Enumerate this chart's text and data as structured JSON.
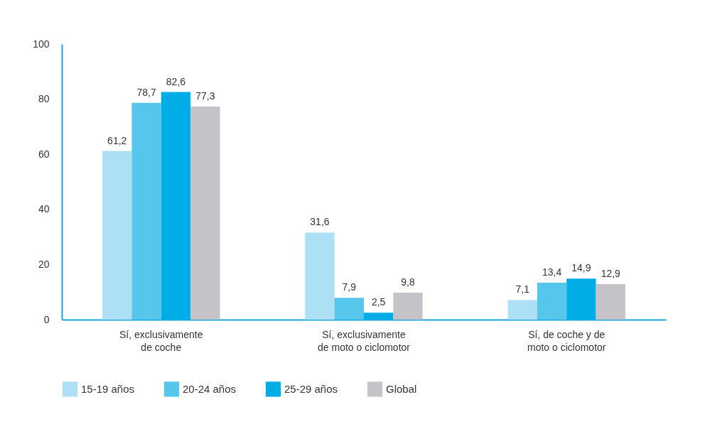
{
  "chart_data": {
    "type": "bar",
    "categories": [
      "Sí, exclusivamente de coche",
      "Sí, exclusivamente de moto o ciclomotor",
      "Sí, de coche y de moto o ciclomotor"
    ],
    "series": [
      {
        "name": "15-19 años",
        "color": "#addff5",
        "values": [
          61.2,
          31.6,
          7.1
        ],
        "value_labels": [
          "61,2",
          "31,6",
          "7,1"
        ]
      },
      {
        "name": "20-24 años",
        "color": "#56c6ed",
        "values": [
          78.7,
          7.9,
          13.4
        ],
        "value_labels": [
          "78,7",
          "7,9",
          "13,4"
        ]
      },
      {
        "name": "25-29 años",
        "color": "#00ade6",
        "values": [
          82.6,
          2.5,
          14.9
        ],
        "value_labels": [
          "82,6",
          "2,5",
          "14,9"
        ]
      },
      {
        "name": "Global",
        "color": "#c5c3c7",
        "values": [
          77.3,
          9.8,
          12.9
        ],
        "value_labels": [
          "77,3",
          "9,8",
          "12,9"
        ]
      }
    ],
    "ylim": [
      0,
      100
    ],
    "yticks": [
      0,
      20,
      40,
      60,
      80,
      100
    ],
    "grid": false,
    "legend": "bottom"
  }
}
